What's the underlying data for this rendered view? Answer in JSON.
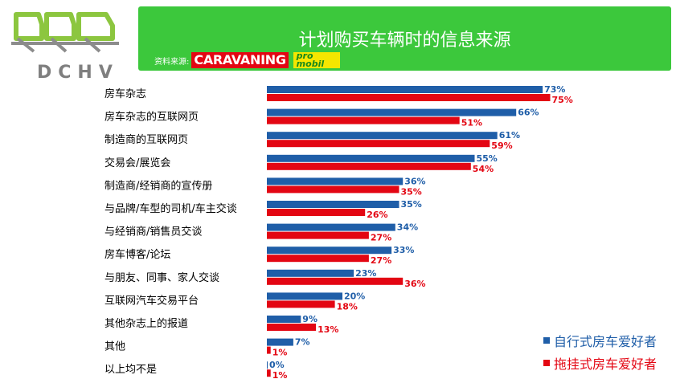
{
  "header": {
    "title": "计划购买车辆时的信息来源",
    "source_label": "资料来源:",
    "brand_caravaning": "CARAVANING",
    "brand_promobil_top": "pro",
    "brand_promobil_bottom": "mobil"
  },
  "logo": {
    "text": "DCHV",
    "colors": {
      "green": "#8cc63f",
      "gray": "#8c8c8c"
    }
  },
  "colors": {
    "header_bg": "#3cc83c",
    "series_blue": "#1f5ea8",
    "series_red": "#e30613"
  },
  "chart_data": {
    "type": "bar",
    "orientation": "horizontal",
    "categories": [
      "房车杂志",
      "房车杂志的互联网页",
      "制造商的互联网页",
      "交易会/展览会",
      "制造商/经销商的宣传册",
      "与品牌/车型的司机/车主交谈",
      "与经销商/销售员交谈",
      "房车博客/论坛",
      "与朋友、同事、家人交谈",
      "互联网汽车交易平台",
      "其他杂志上的报道",
      "其他",
      "以上均不是"
    ],
    "series": [
      {
        "name": "自行式房车爱好者",
        "color": "#1f5ea8",
        "values": [
          73,
          66,
          61,
          55,
          36,
          35,
          34,
          33,
          23,
          20,
          9,
          7,
          0
        ]
      },
      {
        "name": "拖挂式房车爱好者",
        "color": "#e30613",
        "values": [
          75,
          51,
          59,
          54,
          35,
          26,
          27,
          27,
          36,
          18,
          13,
          1,
          1
        ]
      }
    ],
    "value_suffix": "%",
    "xlim": [
      0,
      100
    ],
    "grid": false,
    "legend_position": "bottom-right"
  }
}
